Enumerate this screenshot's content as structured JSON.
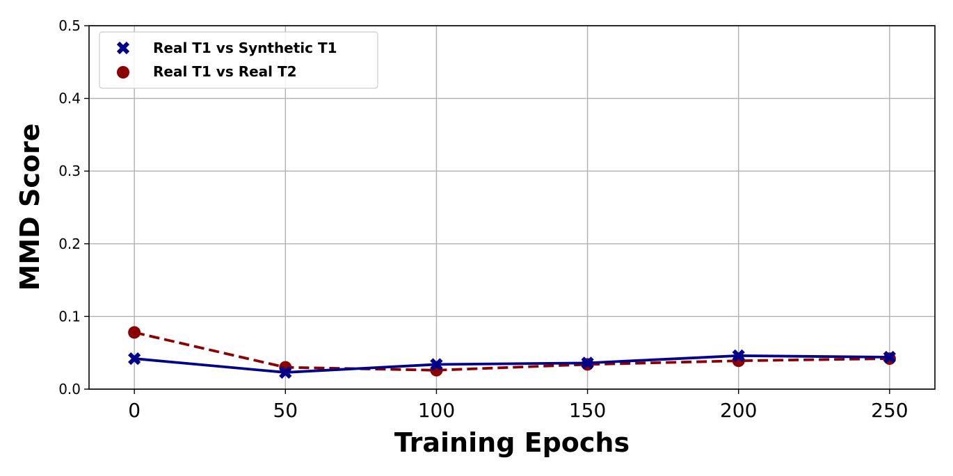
{
  "chart_data": {
    "type": "line",
    "title": "",
    "xlabel": "Training Epochs",
    "ylabel": "MMD Score",
    "x": [
      0,
      50,
      100,
      150,
      200,
      250
    ],
    "xlim": [
      -15,
      265
    ],
    "ylim": [
      0,
      0.5
    ],
    "xticks": [
      0,
      50,
      100,
      150,
      200,
      250
    ],
    "yticks": [
      0.0,
      0.1,
      0.2,
      0.3,
      0.4,
      0.5
    ],
    "xtick_labels": [
      "0",
      "50",
      "100",
      "150",
      "200",
      "250"
    ],
    "ytick_labels": [
      "0.0",
      "0.1",
      "0.2",
      "0.3",
      "0.4",
      "0.5"
    ],
    "grid": true,
    "legend_position": "top-left",
    "series": [
      {
        "name": "Real T1 vs Synthetic T1",
        "values": [
          0.042,
          0.023,
          0.034,
          0.036,
          0.046,
          0.044
        ],
        "color": "#00008b",
        "line_style": "solid",
        "marker": "x"
      },
      {
        "name": "Real T1 vs Real T2",
        "values": [
          0.078,
          0.03,
          0.026,
          0.034,
          0.039,
          0.042
        ],
        "color": "#8b0000",
        "line_style": "dashed",
        "marker": "circle"
      }
    ]
  }
}
